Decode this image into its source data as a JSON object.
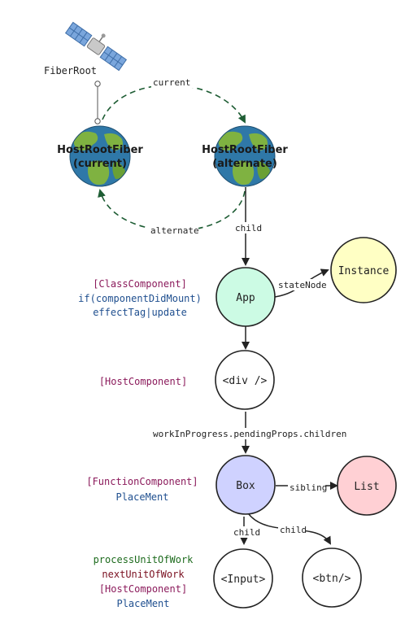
{
  "colors": {
    "app_fill": "#ccfbe4",
    "instance_fill": "#ffffc4",
    "box_fill": "#cfd2ff",
    "list_fill": "#ffd0d4",
    "node_stroke": "#222222",
    "dashed_edge": "#1e5d34",
    "annotation_purple": "#8b1a5b",
    "annotation_blue": "#1f4f8f",
    "annotation_green": "#1d6b1d",
    "annotation_maroon": "#7a1020",
    "globe_ocean": "#2f78a8",
    "globe_land": "#7fb241"
  },
  "icons": {
    "satellite": "satellite-icon",
    "globe": "globe-icon"
  },
  "fiber_root": {
    "label": "FiberRoot"
  },
  "host_root_current": {
    "line1": "HostRootFiber",
    "line2": "(current)"
  },
  "host_root_alternate": {
    "line1": "HostRootFiber",
    "line2": "(alternate)"
  },
  "edges": {
    "current": "current",
    "alternate": "alternate",
    "child_root_app": "child",
    "state_node": "stateNode",
    "pending_props": "workInProgress.pendingProps.children",
    "sibling": "sibling",
    "child_box_input": "child",
    "child_box_btn": "child"
  },
  "nodes": {
    "app": "App",
    "instance": "Instance",
    "div": "<div />",
    "box": "Box",
    "list": "List",
    "input": "<Input>",
    "btn": "<btn/>"
  },
  "annotations": {
    "app": [
      "[ClassComponent]",
      "if(componentDidMount)",
      "effectTag|update"
    ],
    "div": [
      "[HostComponent]"
    ],
    "box": [
      "[FunctionComponent]",
      "PlaceMent"
    ],
    "input": [
      "processUnitOfWork",
      "nextUnitOfWork",
      "[HostComponent]",
      "PlaceMent"
    ]
  }
}
